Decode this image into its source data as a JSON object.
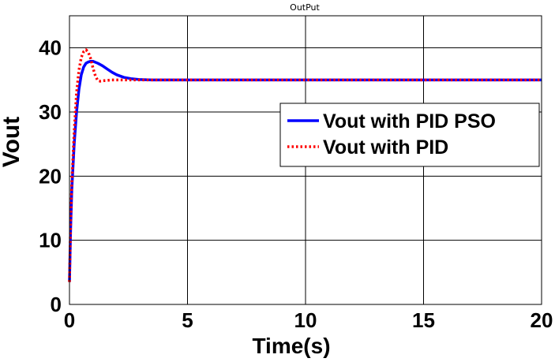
{
  "chart_data": {
    "type": "line",
    "title": "OutPut",
    "xlabel": "Time(s)",
    "ylabel": "Vout",
    "xlim": [
      0,
      20
    ],
    "ylim": [
      0,
      45
    ],
    "xticks": [
      0,
      5,
      10,
      15,
      20
    ],
    "yticks": [
      0,
      10,
      20,
      30,
      40
    ],
    "grid": true,
    "legend_position": "right",
    "series": [
      {
        "name": "Vout with PID PSO",
        "color": "#0000ff",
        "style": "solid",
        "x": [
          0,
          0.05,
          0.1,
          0.2,
          0.3,
          0.4,
          0.5,
          0.6,
          0.7,
          0.8,
          0.9,
          1.0,
          1.2,
          1.4,
          1.6,
          1.8,
          2.0,
          2.3,
          2.6,
          3.0,
          3.5,
          4,
          6,
          10,
          15,
          20
        ],
        "y": [
          3.5,
          12,
          18,
          25,
          30,
          33.5,
          35.8,
          37,
          37.6,
          37.8,
          37.9,
          37.9,
          37.6,
          37.2,
          36.7,
          36.2,
          35.8,
          35.4,
          35.2,
          35.05,
          35.0,
          35,
          35,
          35,
          35,
          35
        ]
      },
      {
        "name": "Vout with PID",
        "color": "#ff0000",
        "style": "dotted",
        "x": [
          0,
          0.05,
          0.1,
          0.2,
          0.3,
          0.4,
          0.5,
          0.6,
          0.7,
          0.8,
          0.9,
          1.0,
          1.1,
          1.2,
          1.3,
          1.5,
          1.8,
          2.2,
          3,
          5,
          10,
          15,
          20
        ],
        "y": [
          3.5,
          13,
          19,
          27,
          33,
          36.5,
          38.5,
          39.4,
          39.7,
          39.3,
          38.3,
          36.8,
          35.6,
          34.9,
          34.8,
          34.9,
          35,
          35,
          35,
          35,
          35,
          35,
          35
        ]
      }
    ]
  }
}
